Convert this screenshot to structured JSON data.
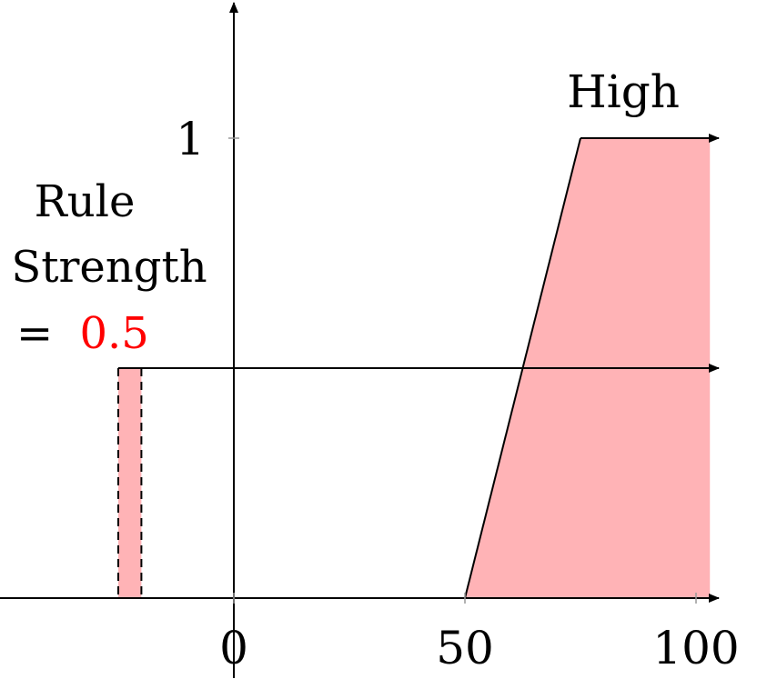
{
  "chart_data": {
    "type": "area",
    "x_ticks": [
      "0",
      "50",
      "100"
    ],
    "y_ticks": [
      "1"
    ],
    "xlim": [
      -50,
      103
    ],
    "ylim": [
      0,
      1.25
    ],
    "membership_series": {
      "name": "High",
      "x": [
        50,
        75,
        103
      ],
      "y": [
        0,
        1,
        1
      ],
      "fill_color": "#ffb3b6"
    },
    "rule_strength": {
      "text_line1": "Rule",
      "text_line2": "Strength",
      "eq": "=",
      "value_text": "0.5",
      "value": 0.5,
      "value_color": "#ff0000",
      "input_bar_x": [
        -25,
        -20
      ]
    }
  }
}
